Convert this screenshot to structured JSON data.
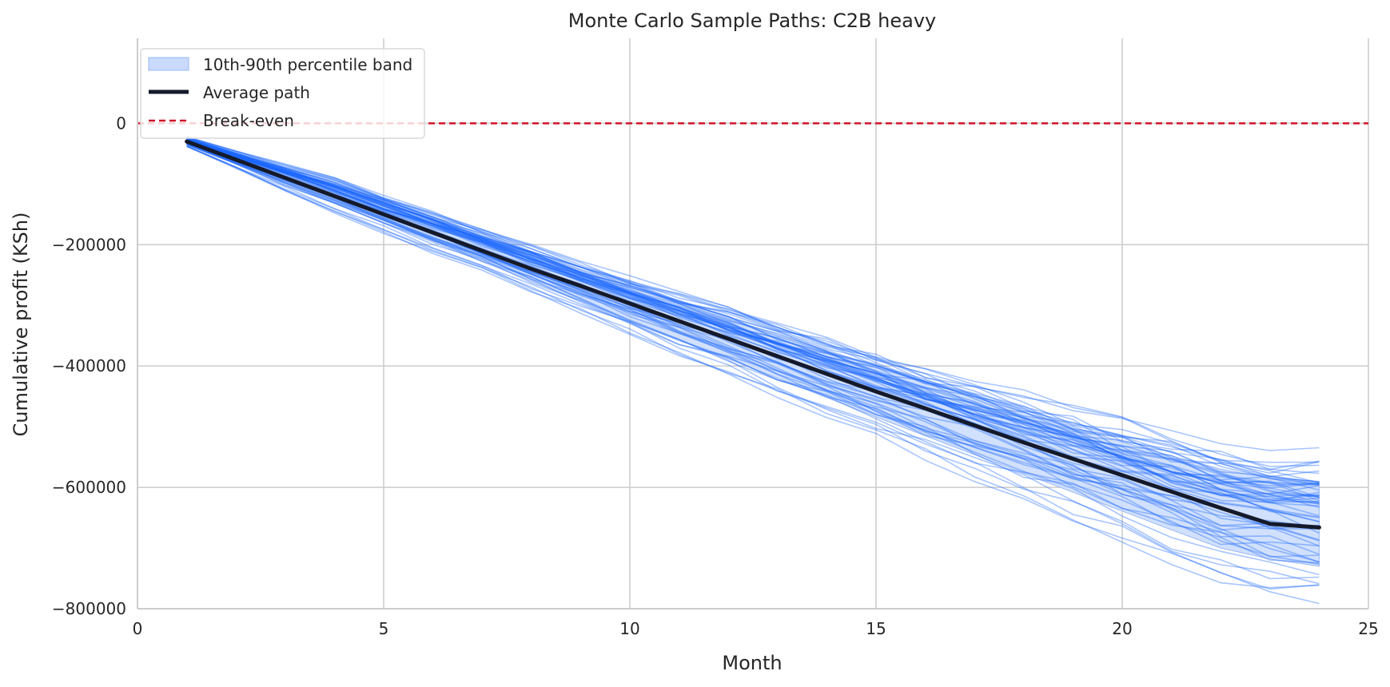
{
  "chart_data": {
    "type": "line",
    "title": "Monte Carlo Sample Paths: C2B heavy",
    "xlabel": "Month",
    "ylabel": "Cumulative profit (KSh)",
    "xlim": [
      0,
      25
    ],
    "ylim": [
      -800000,
      140000
    ],
    "x_ticks": [
      0,
      5,
      10,
      15,
      20,
      25
    ],
    "y_ticks": [
      0,
      -200000,
      -400000,
      -600000,
      -800000
    ],
    "grid": true,
    "legend_position": "top-left",
    "legend": [
      "10th-90th percentile band",
      "Average path",
      "Break-even"
    ],
    "months": [
      1,
      2,
      3,
      4,
      5,
      6,
      7,
      8,
      9,
      10,
      11,
      12,
      13,
      14,
      15,
      16,
      17,
      18,
      19,
      20,
      21,
      22,
      23,
      24
    ],
    "average_path": [
      -30000,
      -60000,
      -90000,
      -120000,
      -150000,
      -180000,
      -210000,
      -240000,
      -268000,
      -297000,
      -326000,
      -355000,
      -384000,
      -413000,
      -442000,
      -470000,
      -498000,
      -526000,
      -553000,
      -580000,
      -607000,
      -634000,
      -660000,
      -666000
    ],
    "band_p10": [
      -35000,
      -67000,
      -100000,
      -132000,
      -164000,
      -196000,
      -228000,
      -260000,
      -292000,
      -324000,
      -356000,
      -388000,
      -420000,
      -452000,
      -484000,
      -515000,
      -546000,
      -577000,
      -608000,
      -639000,
      -670000,
      -700000,
      -718000,
      -730000
    ],
    "band_p90": [
      -25000,
      -50000,
      -75000,
      -100000,
      -130000,
      -158000,
      -186000,
      -214000,
      -242000,
      -270000,
      -296000,
      -322000,
      -348000,
      -374000,
      -400000,
      -426000,
      -452000,
      -476000,
      -500000,
      -525000,
      -548000,
      -570000,
      -585000,
      -590000
    ],
    "break_even": 0,
    "colors": {
      "sample_path": "#1a66ff",
      "band": "#c9dafc",
      "band_edge": "#9ab8f5",
      "average": "#141a2b",
      "break_even": "#d0142a",
      "grid": "#cccccc"
    }
  }
}
